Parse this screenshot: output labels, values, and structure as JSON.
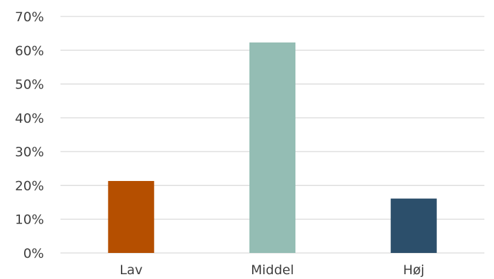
{
  "chart_data": {
    "type": "bar",
    "categories": [
      "Lav",
      "Middel",
      "Høj"
    ],
    "values": [
      21.3,
      62.3,
      16.1
    ],
    "colors": [
      "#b54f00",
      "#94bdb4",
      "#2c4f6b"
    ],
    "ylim": [
      0,
      70
    ],
    "y_ticks": [
      0,
      10,
      20,
      30,
      40,
      50,
      60,
      70
    ],
    "y_tick_labels": [
      "0%",
      "10%",
      "20%",
      "30%",
      "40%",
      "50%",
      "60%",
      "70%"
    ],
    "grid": true,
    "legend": "none"
  }
}
